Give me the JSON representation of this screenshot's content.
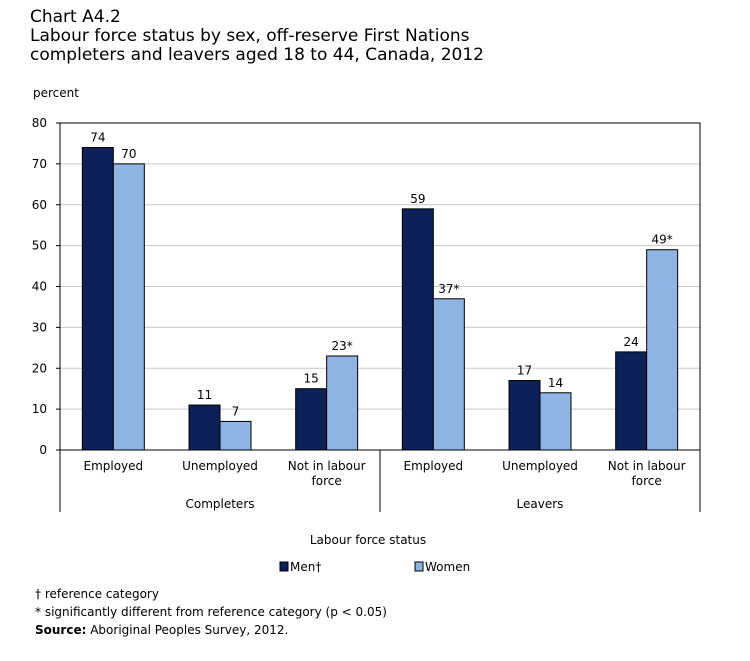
{
  "chart_data": {
    "type": "bar",
    "title_lines": [
      "Chart A4.2",
      "Labour force status by sex, off-reserve First Nations",
      "completers and leavers aged 18 to 44, Canada, 2012"
    ],
    "ylabel": "percent",
    "xlabel": "Labour force status",
    "ylim": [
      0,
      80
    ],
    "yticks": [
      "0",
      "10",
      "20",
      "30",
      "40",
      "50",
      "60",
      "70",
      "80"
    ],
    "gridlines": true,
    "groups": [
      {
        "name": "Completers",
        "categories": [
          [
            "Employed"
          ],
          [
            "Unemployed"
          ],
          [
            "Not in labour",
            "force"
          ]
        ]
      },
      {
        "name": "Leavers",
        "categories": [
          [
            "Employed"
          ],
          [
            "Unemployed"
          ],
          [
            "Not in labour",
            "force"
          ]
        ]
      }
    ],
    "series": [
      {
        "name": "Men†",
        "color": "#0d2159",
        "values": [
          74,
          11,
          15,
          59,
          17,
          24
        ],
        "labels": [
          "74",
          "11",
          "15",
          "59",
          "17",
          "24"
        ]
      },
      {
        "name": "Women",
        "color": "#8db4e2",
        "values": [
          70,
          7,
          23,
          37,
          14,
          49
        ],
        "labels": [
          "70",
          "7",
          "23*",
          "37*",
          "14",
          "49*"
        ]
      }
    ],
    "legend_position": "bottom"
  },
  "notes": {
    "ref": "† reference category",
    "sig": "* significantly different from reference category (p < 0.05)",
    "source_label": "Source:",
    "source_text": " Aboriginal Peoples Survey, 2012."
  }
}
